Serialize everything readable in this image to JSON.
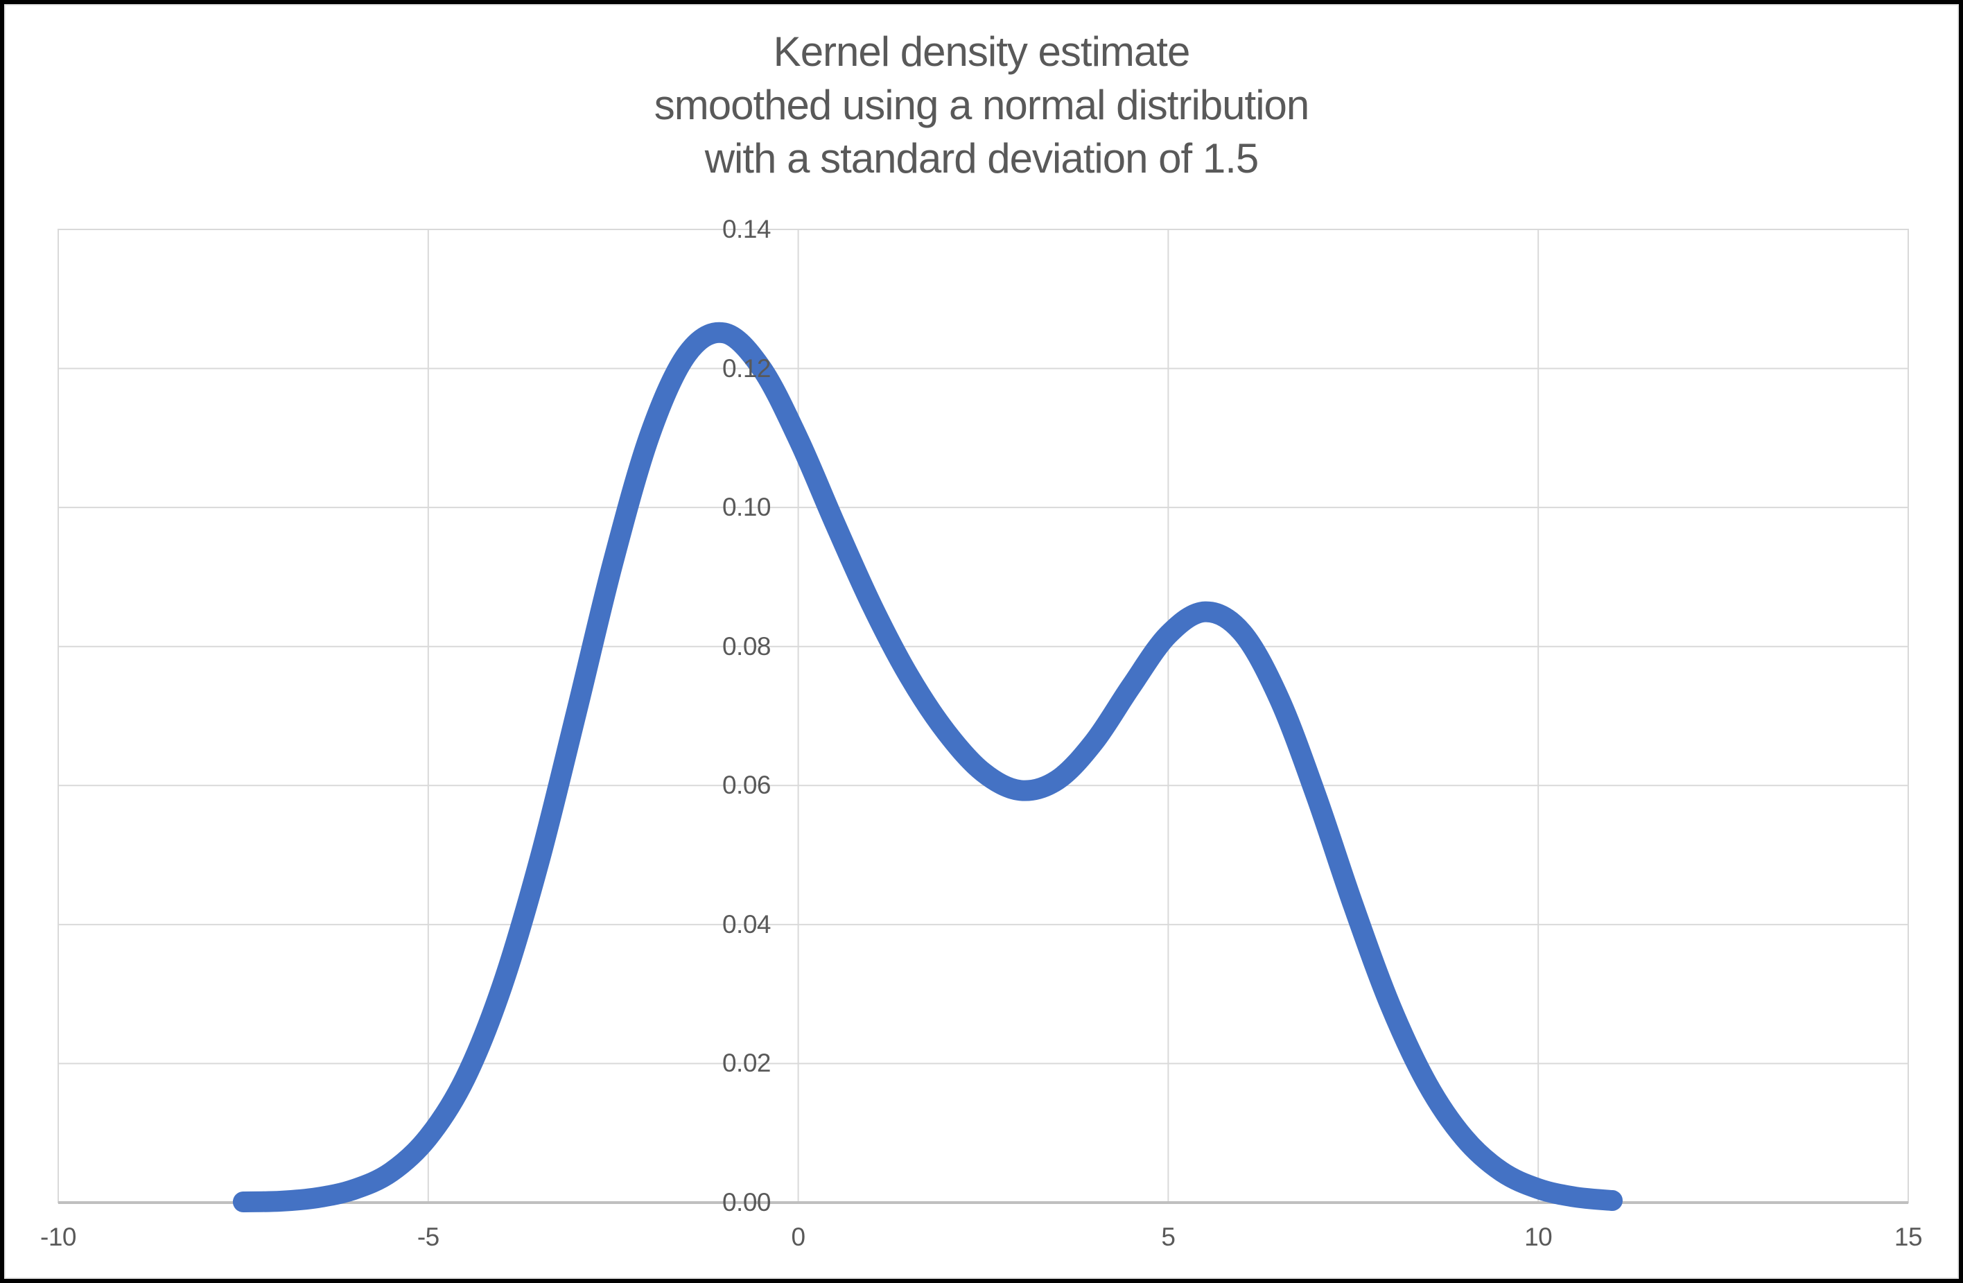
{
  "title": {
    "line1": "Kernel density estimate",
    "line2": "smoothed using a normal distribution",
    "line3": "with a standard deviation of 1.5"
  },
  "colors": {
    "line": "#4472C4",
    "gridline": "#D9D9D9",
    "axis_line": "#BFBFBF",
    "label_text": "#595959",
    "title_text": "#595959",
    "background": "#FFFFFF",
    "frame": "#010101"
  },
  "axes": {
    "x": {
      "min": -10,
      "max": 15,
      "tick_interval": 5,
      "tick_values": [
        -10,
        -5,
        0,
        5,
        10,
        15
      ],
      "tick_labels": [
        "-10",
        "-5",
        "0",
        "5",
        "10",
        "15"
      ]
    },
    "y": {
      "min": 0,
      "max": 0.14,
      "tick_interval": 0.02,
      "tick_values": [
        0,
        0.02,
        0.04,
        0.06,
        0.08,
        0.1,
        0.12,
        0.14
      ],
      "tick_labels": [
        "0.00",
        "0.02",
        "0.04",
        "0.06",
        "0.08",
        "0.10",
        "0.12",
        "0.14"
      ]
    }
  },
  "chart_data": {
    "type": "line",
    "title": "Kernel density estimate smoothed using a normal distribution with a standard deviation of 1.5",
    "xlabel": "",
    "ylabel": "",
    "xlim": [
      -10,
      15
    ],
    "ylim": [
      0,
      0.14
    ],
    "grid": true,
    "legend": false,
    "series": [
      {
        "name": "kernel-density-estimate",
        "color": "#4472C4",
        "x": [
          -7.5,
          -7.0,
          -6.5,
          -6.0,
          -5.5,
          -5.0,
          -4.5,
          -4.0,
          -3.5,
          -3.0,
          -2.5,
          -2.0,
          -1.5,
          -1.0,
          -0.5,
          0.0,
          0.5,
          1.0,
          1.5,
          2.0,
          2.5,
          3.0,
          3.5,
          4.0,
          4.5,
          5.0,
          5.5,
          6.0,
          6.5,
          7.0,
          7.5,
          8.0,
          8.5,
          9.0,
          9.5,
          10.0,
          10.5,
          11.0
        ],
        "y": [
          0.0001,
          0.0002,
          0.0007,
          0.0019,
          0.0044,
          0.0094,
          0.0179,
          0.0312,
          0.0491,
          0.0704,
          0.0922,
          0.1106,
          0.1221,
          0.1251,
          0.1201,
          0.1099,
          0.0976,
          0.0858,
          0.0757,
          0.0677,
          0.0619,
          0.0593,
          0.0608,
          0.0663,
          0.0743,
          0.0817,
          0.085,
          0.082,
          0.0725,
          0.0585,
          0.0428,
          0.0284,
          0.0171,
          0.0093,
          0.0045,
          0.002,
          0.0008,
          0.0003
        ]
      }
    ]
  }
}
